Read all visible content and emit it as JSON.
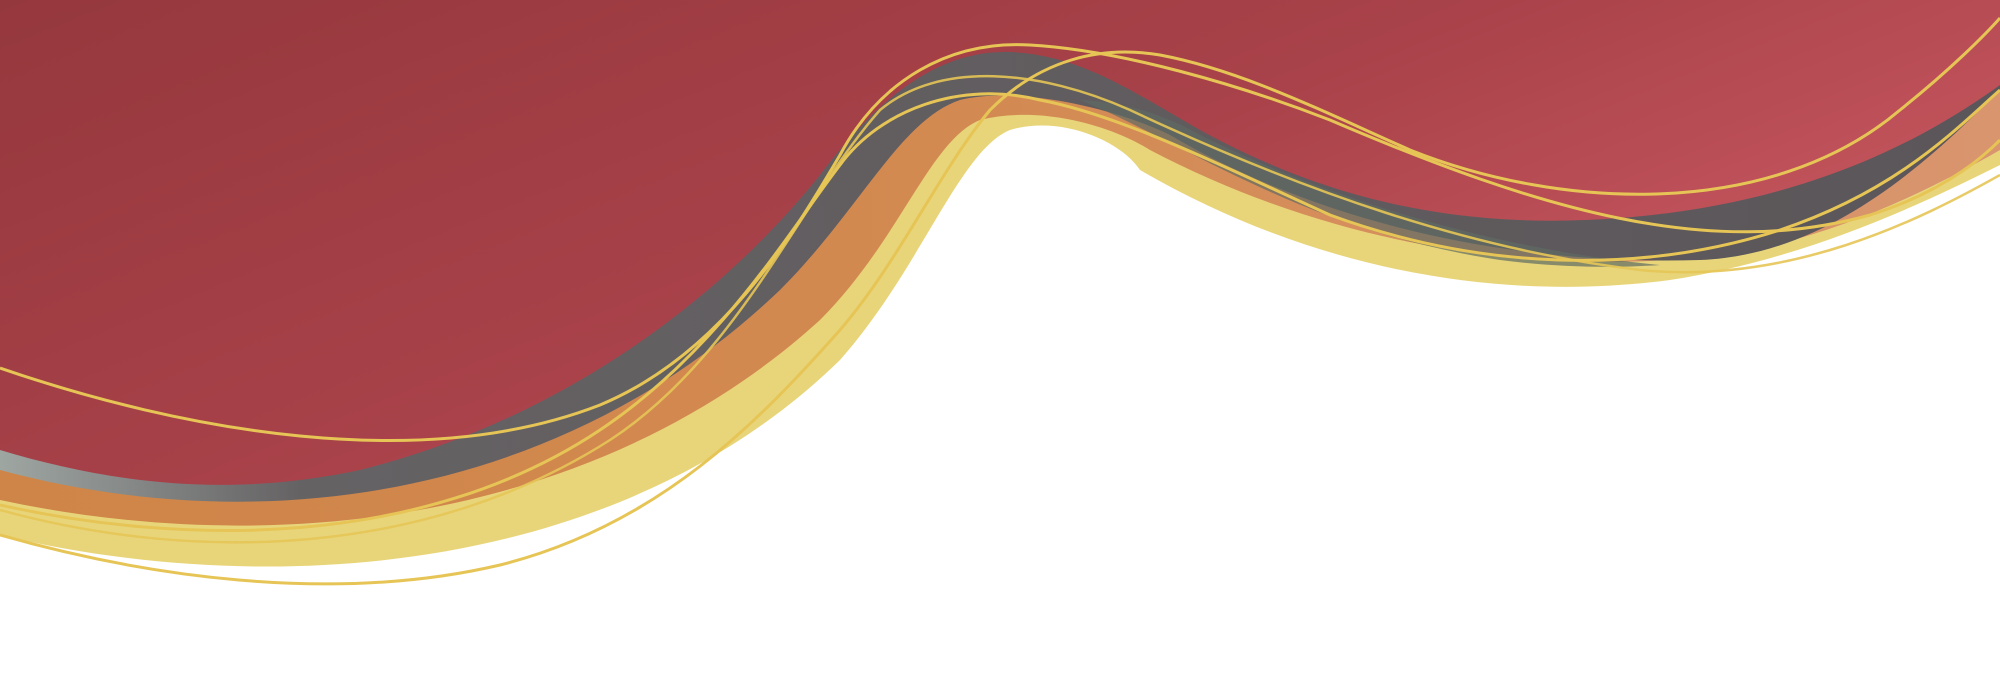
{
  "artwork": {
    "subject": "decorative-wave-banner",
    "colors": {
      "background": "#ffffff",
      "red_dark": "#95383d",
      "red_mid": "#a9424a",
      "red_light": "#cc5a62",
      "gray_dark": "#5b5659",
      "gray_light": "#9ea6a2",
      "gray_green": "#5f6b64",
      "orange": "#cf8547",
      "peach": "#d9956e",
      "gold_fill": "#e8d57a",
      "gold_line": "#e6c556"
    }
  }
}
